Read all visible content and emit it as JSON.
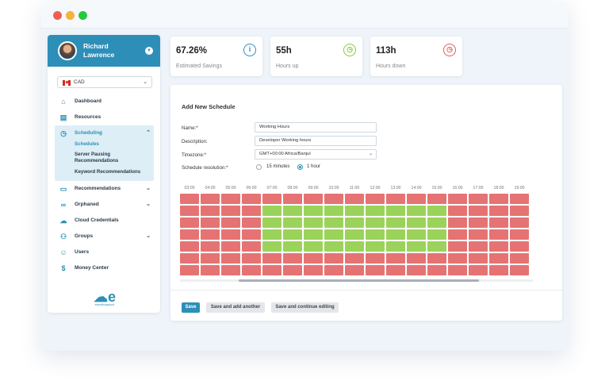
{
  "user": {
    "name": "Richard Lawrence"
  },
  "currency": {
    "code": "CAD"
  },
  "nav": {
    "dashboard": "Dashboard",
    "resources": "Resources",
    "scheduling": "Scheduling",
    "schedules": "Schedules",
    "server_pausing": "Server Pausing Recommendations",
    "keyword_recommendations": "Keyword Recommendations",
    "recommendations": "Recommendations",
    "orphaned": "Orphaned",
    "cloud_credentials": "Cloud Credentials",
    "groups": "Groups",
    "users": "Users",
    "money_center": "Money Center"
  },
  "logo": {
    "text": "everythingcloud"
  },
  "stats": [
    {
      "value": "67.26%",
      "label": "Estimated Savings",
      "icon": "info-icon",
      "color": "#2d8fb8"
    },
    {
      "value": "55h",
      "label": "Hours up",
      "icon": "clock-icon",
      "color": "#8cc63f"
    },
    {
      "value": "113h",
      "label": "Hours down",
      "icon": "clock-icon",
      "color": "#e05c5c"
    }
  ],
  "form": {
    "title": "Add New Schedule",
    "name_label": "Name:*",
    "name_value": "Working Hours",
    "description_label": "Description:",
    "description_value": "Developer Working hours",
    "timezone_label": "Timezone:*",
    "timezone_value": "GMT+00:00 Africa/Banjul",
    "resolution_label": "Schedule resolution:*",
    "resolution_options": [
      "15 minutes",
      "1 hour"
    ],
    "resolution_selected": "1 hour"
  },
  "schedule": {
    "hours": [
      "03:00",
      "04:00",
      "05:00",
      "06:00",
      "07:00",
      "08:00",
      "09:00",
      "10:00",
      "11:00",
      "12:00",
      "13:00",
      "14:00",
      "15:00",
      "16:00",
      "17:00",
      "18:00",
      "19:00"
    ],
    "up_hours": [
      "07:00",
      "08:00",
      "09:00",
      "10:00",
      "11:00",
      "12:00",
      "13:00",
      "14:00",
      "15:00"
    ],
    "up_rows": [
      1,
      2,
      3,
      4
    ],
    "rows": 7,
    "up_color": "#9bd35a",
    "down_color": "#e57373"
  },
  "buttons": {
    "save": "Save",
    "save_add_another": "Save and add another",
    "save_continue": "Save and continue editing"
  }
}
